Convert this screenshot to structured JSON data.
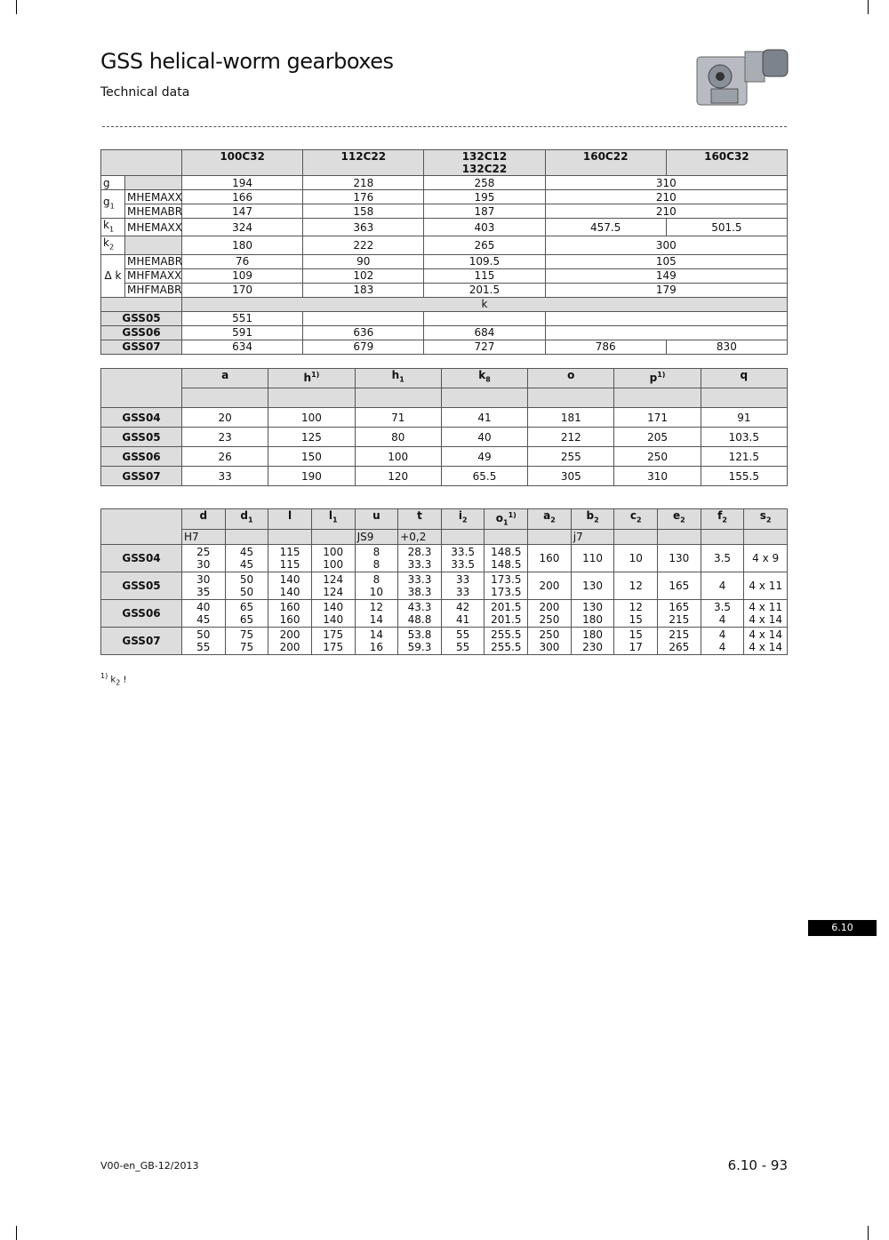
{
  "header": {
    "title": "GSS helical-worm gearboxes",
    "subtitle": "Technical data"
  },
  "table1": {
    "rows": [
      [
        {
          "t": "",
          "cs": 2,
          "c": "h"
        },
        {
          "t": "100C32",
          "c": "h"
        },
        {
          "t": "112C22",
          "c": "h"
        },
        {
          "t": "132C12\n132C22",
          "c": "h"
        },
        {
          "t": "160C22",
          "c": "h"
        },
        {
          "t": "160C32",
          "c": "h"
        }
      ],
      [
        {
          "t": "g",
          "c": "lbl"
        },
        {
          "t": "",
          "c": "g"
        },
        {
          "t": "194"
        },
        {
          "t": "218"
        },
        {
          "t": "258"
        },
        {
          "t": "310",
          "cs": 2
        }
      ],
      [
        {
          "t": "g",
          "sub": "1",
          "rs": 2,
          "c": "lbl"
        },
        {
          "t": "MHEMAXX",
          "c": "lbl"
        },
        {
          "t": "166"
        },
        {
          "t": "176"
        },
        {
          "t": "195"
        },
        {
          "t": "210",
          "cs": 2
        }
      ],
      [
        {
          "t": "MHEMABR",
          "c": "lbl"
        },
        {
          "t": "147"
        },
        {
          "t": "158"
        },
        {
          "t": "187"
        },
        {
          "t": "210",
          "cs": 2
        }
      ],
      [
        {
          "t": "k",
          "sub": "1",
          "c": "lbl"
        },
        {
          "t": "MHEMAXX",
          "c": "lbl"
        },
        {
          "t": "324"
        },
        {
          "t": "363"
        },
        {
          "t": "403"
        },
        {
          "t": "457.5"
        },
        {
          "t": "501.5"
        }
      ],
      [
        {
          "t": "k",
          "sub": "2",
          "c": "lbl"
        },
        {
          "t": "",
          "c": "g"
        },
        {
          "t": "180"
        },
        {
          "t": "222"
        },
        {
          "t": "265"
        },
        {
          "t": "300",
          "cs": 2
        }
      ],
      [
        {
          "t": "Δ k",
          "rs": 3
        },
        {
          "t": "MHEMABR",
          "c": "lbl"
        },
        {
          "t": "76"
        },
        {
          "t": "90"
        },
        {
          "t": "109.5"
        },
        {
          "t": "105",
          "cs": 2
        }
      ],
      [
        {
          "t": "MHFMAXX",
          "c": "lbl"
        },
        {
          "t": "109"
        },
        {
          "t": "102"
        },
        {
          "t": "115"
        },
        {
          "t": "149",
          "cs": 2
        }
      ],
      [
        {
          "t": "MHFMABR",
          "c": "lbl"
        },
        {
          "t": "170"
        },
        {
          "t": "183"
        },
        {
          "t": "201.5"
        },
        {
          "t": "179",
          "cs": 2
        }
      ],
      [
        {
          "t": "",
          "cs": 2,
          "c": "g"
        },
        {
          "t": "k",
          "cs": 5,
          "c": "g"
        }
      ],
      [
        {
          "t": "GSS05",
          "cs": 2,
          "c": "rl"
        },
        {
          "t": "551"
        },
        {
          "t": ""
        },
        {
          "t": ""
        },
        {
          "t": "",
          "cs": 2
        }
      ],
      [
        {
          "t": "GSS06",
          "cs": 2,
          "c": "rl"
        },
        {
          "t": "591"
        },
        {
          "t": "636"
        },
        {
          "t": "684"
        },
        {
          "t": "",
          "cs": 2
        }
      ],
      [
        {
          "t": "GSS07",
          "cs": 2,
          "c": "rl"
        },
        {
          "t": "634"
        },
        {
          "t": "679"
        },
        {
          "t": "727"
        },
        {
          "t": "786"
        },
        {
          "t": "830"
        }
      ]
    ]
  },
  "table2": {
    "rows": [
      [
        {
          "t": "",
          "rs": 2,
          "c": "h"
        },
        {
          "t": "a",
          "c": "h"
        },
        {
          "t": "h",
          "sup": "1)",
          "c": "h"
        },
        {
          "t": "h",
          "sub": "1",
          "c": "h"
        },
        {
          "t": "k",
          "sub": "8",
          "c": "h"
        },
        {
          "t": "o",
          "c": "h"
        },
        {
          "t": "p",
          "sup": "1)",
          "c": "h"
        },
        {
          "t": "q",
          "c": "h"
        }
      ],
      [
        {
          "t": "",
          "c": "g"
        },
        {
          "t": "",
          "c": "g"
        },
        {
          "t": "",
          "c": "g"
        },
        {
          "t": "",
          "c": "g"
        },
        {
          "t": "",
          "c": "g"
        },
        {
          "t": "",
          "c": "g"
        },
        {
          "t": "",
          "c": "g"
        }
      ],
      [
        {
          "t": "GSS04",
          "c": "rl"
        },
        {
          "t": "20"
        },
        {
          "t": "100"
        },
        {
          "t": "71"
        },
        {
          "t": "41"
        },
        {
          "t": "181"
        },
        {
          "t": "171"
        },
        {
          "t": "91"
        }
      ],
      [
        {
          "t": "GSS05",
          "c": "rl"
        },
        {
          "t": "23"
        },
        {
          "t": "125"
        },
        {
          "t": "80"
        },
        {
          "t": "40"
        },
        {
          "t": "212"
        },
        {
          "t": "205"
        },
        {
          "t": "103.5"
        }
      ],
      [
        {
          "t": "GSS06",
          "c": "rl"
        },
        {
          "t": "26"
        },
        {
          "t": "150"
        },
        {
          "t": "100"
        },
        {
          "t": "49"
        },
        {
          "t": "255"
        },
        {
          "t": "250"
        },
        {
          "t": "121.5"
        }
      ],
      [
        {
          "t": "GSS07",
          "c": "rl"
        },
        {
          "t": "33"
        },
        {
          "t": "190"
        },
        {
          "t": "120"
        },
        {
          "t": "65.5"
        },
        {
          "t": "305"
        },
        {
          "t": "310"
        },
        {
          "t": "155.5"
        }
      ]
    ]
  },
  "table3": {
    "rows": [
      [
        {
          "t": "",
          "rs": 2,
          "c": "h"
        },
        {
          "t": "d",
          "c": "h"
        },
        {
          "t": "d",
          "sub": "1",
          "c": "h"
        },
        {
          "t": "l",
          "c": "h"
        },
        {
          "t": "l",
          "sub": "1",
          "c": "h"
        },
        {
          "t": "u",
          "c": "h"
        },
        {
          "t": "t",
          "c": "h"
        },
        {
          "t": "i",
          "sub": "2",
          "c": "h"
        },
        {
          "t": "o",
          "sub": "1",
          "sup": "1)",
          "c": "h"
        },
        {
          "t": "a",
          "sub": "2",
          "c": "h"
        },
        {
          "t": "b",
          "sub": "2",
          "c": "h"
        },
        {
          "t": "c",
          "sub": "2",
          "c": "h"
        },
        {
          "t": "e",
          "sub": "2",
          "c": "h"
        },
        {
          "t": "f",
          "sub": "2",
          "c": "h"
        },
        {
          "t": "s",
          "sub": "2",
          "c": "h"
        }
      ],
      [
        {
          "t": "H7",
          "c": "g lbl"
        },
        {
          "t": "",
          "c": "g"
        },
        {
          "t": "",
          "c": "g"
        },
        {
          "t": "",
          "c": "g"
        },
        {
          "t": "JS9",
          "c": "g lbl"
        },
        {
          "t": "+0,2",
          "c": "g lbl"
        },
        {
          "t": "",
          "c": "g"
        },
        {
          "t": "",
          "c": "g"
        },
        {
          "t": "",
          "c": "g"
        },
        {
          "t": "j7",
          "c": "g lbl"
        },
        {
          "t": "",
          "c": "g"
        },
        {
          "t": "",
          "c": "g"
        },
        {
          "t": "",
          "c": "g"
        },
        {
          "t": "",
          "c": "g"
        }
      ],
      [
        {
          "t": "GSS04",
          "c": "rl tall"
        },
        {
          "t": "25\n30"
        },
        {
          "t": "45\n45"
        },
        {
          "t": "115\n115"
        },
        {
          "t": "100\n100"
        },
        {
          "t": "8\n8"
        },
        {
          "t": "28.3\n33.3"
        },
        {
          "t": "33.5\n33.5"
        },
        {
          "t": "148.5\n148.5"
        },
        {
          "t": "160"
        },
        {
          "t": "110"
        },
        {
          "t": "10"
        },
        {
          "t": "130"
        },
        {
          "t": "3.5"
        },
        {
          "t": "4 x 9"
        }
      ],
      [
        {
          "t": "GSS05",
          "c": "rl tall"
        },
        {
          "t": "30\n35"
        },
        {
          "t": "50\n50"
        },
        {
          "t": "140\n140"
        },
        {
          "t": "124\n124"
        },
        {
          "t": "8\n10"
        },
        {
          "t": "33.3\n38.3"
        },
        {
          "t": "33\n33"
        },
        {
          "t": "173.5\n173.5"
        },
        {
          "t": "200"
        },
        {
          "t": "130"
        },
        {
          "t": "12"
        },
        {
          "t": "165"
        },
        {
          "t": "4"
        },
        {
          "t": "4 x 11"
        }
      ],
      [
        {
          "t": "GSS06",
          "c": "rl tall"
        },
        {
          "t": "40\n45"
        },
        {
          "t": "65\n65"
        },
        {
          "t": "160\n160"
        },
        {
          "t": "140\n140"
        },
        {
          "t": "12\n14"
        },
        {
          "t": "43.3\n48.8"
        },
        {
          "t": "42\n41"
        },
        {
          "t": "201.5\n201.5"
        },
        {
          "t": "200\n250"
        },
        {
          "t": "130\n180"
        },
        {
          "t": "12\n15"
        },
        {
          "t": "165\n215"
        },
        {
          "t": "3.5\n4"
        },
        {
          "t": "4 x 11\n4 x 14"
        }
      ],
      [
        {
          "t": "GSS07",
          "c": "rl tall"
        },
        {
          "t": "50\n55"
        },
        {
          "t": "75\n75"
        },
        {
          "t": "200\n200"
        },
        {
          "t": "175\n175"
        },
        {
          "t": "14\n16"
        },
        {
          "t": "53.8\n59.3"
        },
        {
          "t": "55\n55"
        },
        {
          "t": "255.5\n255.5"
        },
        {
          "t": "250\n300"
        },
        {
          "t": "180\n230"
        },
        {
          "t": "15\n17"
        },
        {
          "t": "215\n265"
        },
        {
          "t": "4\n4"
        },
        {
          "t": "4 x 14\n4 x 14"
        }
      ]
    ]
  },
  "footnote": {
    "mark": "1)",
    "text": "k",
    "sub": "2",
    "suffix": " !"
  },
  "section_tab": "6.10",
  "footer": {
    "doc_code": "V00-en_GB-12/2013",
    "page_number": "6.10 - 93"
  }
}
